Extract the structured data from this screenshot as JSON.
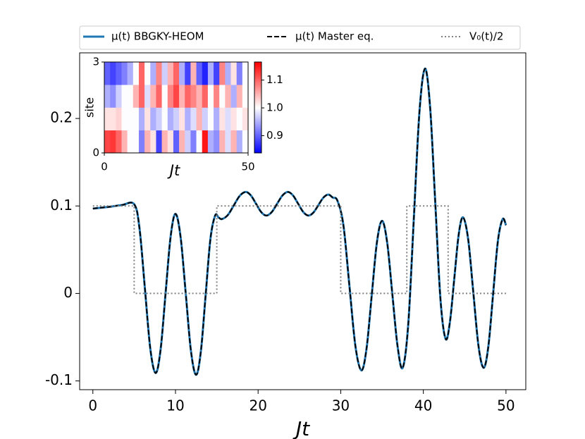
{
  "chart_data": [
    {
      "type": "line",
      "xlabel": "Jt",
      "legend": "top",
      "x": [
        0,
        1,
        2,
        3.5,
        5,
        5.65,
        6.3,
        6.95,
        7.6,
        8.2,
        8.8,
        9.4,
        10,
        10.625,
        11.25,
        11.875,
        12.5,
        13.075,
        13.65,
        14.225,
        14.8,
        15.2,
        15.6,
        16.325,
        17.05,
        17.775,
        18.5,
        19.125,
        19.75,
        20.375,
        21,
        21.65,
        22.3,
        22.95,
        23.6,
        24.225,
        24.85,
        25.475,
        26.1,
        26.7,
        27.3,
        27.9,
        28.5,
        29.05,
        29.6,
        30.325,
        31.05,
        31.775,
        32.5,
        33.125,
        33.75,
        34.375,
        35,
        35.625,
        36.25,
        36.875,
        37.5,
        38.175,
        38.85,
        39.525,
        40.2,
        40.825,
        41.45,
        42.075,
        42.7,
        43.225,
        43.75,
        44.275,
        44.8,
        45.425,
        46.05,
        46.675,
        47.3,
        47.875,
        48.45,
        49.025,
        49.6,
        50
      ],
      "series": [
        {
          "name": "μ(t) BBGKY-HEOM",
          "color": "#1f77b4",
          "linestyle": "solid",
          "values": [
            0.097,
            0.098,
            0.099,
            0.101,
            0.102,
            0.074,
            0.0055,
            -0.063,
            -0.091,
            -0.064,
            0,
            0.064,
            0.091,
            0.064,
            -0.001,
            -0.066,
            -0.093,
            -0.066,
            -0.002,
            0.062,
            0.089,
            0.087,
            0.085,
            0.0895,
            0.1005,
            0.1115,
            0.116,
            0.112,
            0.1025,
            0.093,
            0.089,
            0.093,
            0.1025,
            0.112,
            0.116,
            0.112,
            0.1025,
            0.093,
            0.089,
            0.0925,
            0.101,
            0.1095,
            0.113,
            0.1095,
            0.106,
            0.078,
            0.009,
            -0.06,
            -0.088,
            -0.063,
            -0.0025,
            0.058,
            0.083,
            0.058,
            -0.001,
            -0.06,
            -0.085,
            -0.035,
            0.086,
            0.207,
            0.257,
            0.212,
            0.1025,
            -0.007,
            -0.052,
            -0.032,
            0.0175,
            0.067,
            0.087,
            0.062,
            0.001,
            -0.06,
            -0.085,
            -0.06,
            0,
            0.06,
            0.085,
            0.078
          ]
        },
        {
          "name": "μ(t) Master eq.",
          "color": "#000000",
          "linestyle": "dashed",
          "values": [
            0.097,
            0.098,
            0.099,
            0.101,
            0.102,
            0.074,
            0.0055,
            -0.063,
            -0.091,
            -0.064,
            0,
            0.064,
            0.091,
            0.064,
            -0.001,
            -0.066,
            -0.093,
            -0.066,
            -0.002,
            0.062,
            0.089,
            0.087,
            0.085,
            0.0895,
            0.1005,
            0.1115,
            0.116,
            0.112,
            0.1025,
            0.093,
            0.089,
            0.093,
            0.1025,
            0.112,
            0.116,
            0.112,
            0.1025,
            0.093,
            0.089,
            0.0925,
            0.101,
            0.1095,
            0.113,
            0.1095,
            0.106,
            0.078,
            0.009,
            -0.06,
            -0.088,
            -0.063,
            -0.0025,
            0.058,
            0.083,
            0.058,
            -0.001,
            -0.06,
            -0.085,
            -0.035,
            0.086,
            0.207,
            0.257,
            0.212,
            0.1025,
            -0.007,
            -0.052,
            -0.032,
            0.0175,
            0.067,
            0.087,
            0.062,
            0.001,
            -0.06,
            -0.085,
            -0.06,
            0,
            0.06,
            0.085,
            0.078
          ]
        },
        {
          "name": "V₀(t)/2",
          "color": "#808080",
          "linestyle": "dotted",
          "x": [
            0,
            5,
            5,
            15,
            15,
            30,
            30,
            38,
            38,
            43,
            43,
            50
          ],
          "values": [
            0.1,
            0.1,
            0,
            0,
            0.1,
            0.1,
            0,
            0,
            0.1,
            0.1,
            0,
            0
          ]
        }
      ],
      "xlim": [
        -1.6,
        52.4
      ],
      "ylim": [
        -0.11,
        0.275
      ],
      "xticks": [
        0,
        10,
        20,
        30,
        40,
        50
      ],
      "yticks": [
        -0.1,
        0,
        0.1,
        0.2
      ]
    },
    {
      "type": "heatmap",
      "xlabel": "Jt",
      "ylabel": "site",
      "xlim": [
        0,
        50
      ],
      "ylim": [
        0,
        3
      ],
      "xticks": [
        0,
        50
      ],
      "yticks": [
        0,
        3
      ],
      "cmap": "bwr",
      "values": [
        [
          1.12,
          1.13,
          1.1,
          1.05,
          1.0,
          1.0,
          0.92,
          1.05,
          1.02,
          0.88,
          1.05,
          1.02,
          0.9,
          1.05,
          0.97,
          0.92,
          1.0,
          1.15,
          0.95,
          0.93,
          1.05,
          0.98,
          1.05,
          0.95,
          1.0
        ],
        [
          1.02,
          1.02,
          1.03,
          1.0,
          1.0,
          1.0,
          0.95,
          1.02,
          0.95,
          0.97,
          1.0,
          0.95,
          0.97,
          1.02,
          0.95,
          0.98,
          1.05,
          0.97,
          1.0,
          0.95,
          1.02,
          0.98,
          1.02,
          1.0,
          1.02
        ],
        [
          0.95,
          0.93,
          0.97,
          1.0,
          1.0,
          1.05,
          1.1,
          0.98,
          1.05,
          1.1,
          1.0,
          1.08,
          1.12,
          1.05,
          1.1,
          1.08,
          1.05,
          1.1,
          1.0,
          1.08,
          1.0,
          1.05,
          0.95,
          1.05,
          1.0
        ],
        [
          0.9,
          0.88,
          0.9,
          0.92,
          0.95,
          1.0,
          1.1,
          1.0,
          0.95,
          1.08,
          0.97,
          1.05,
          1.1,
          0.95,
          0.88,
          1.05,
          0.9,
          0.86,
          0.95,
          0.88,
          1.08,
          0.95,
          1.02,
          0.92,
          1.0
        ]
      ],
      "clim": [
        0.838,
        1.165
      ],
      "cticks": [
        0.9,
        {
          "value": 1.0,
          "label": "1.0"
        },
        1.1
      ]
    }
  ]
}
